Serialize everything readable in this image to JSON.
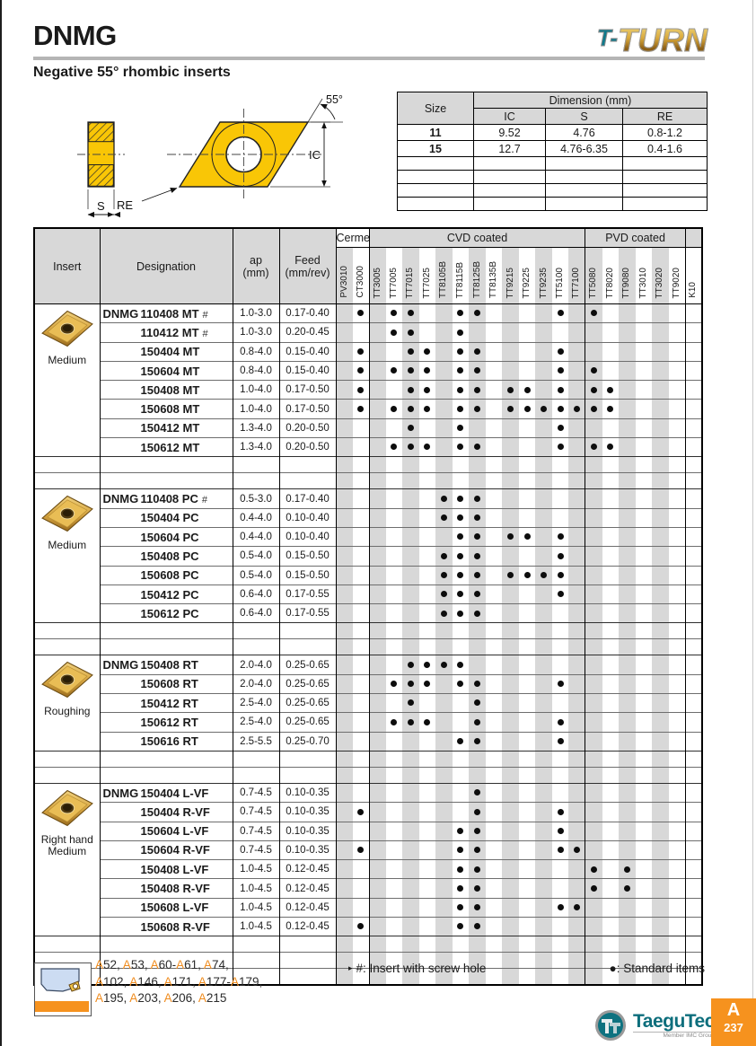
{
  "page": {
    "title": "DNMG",
    "subtitle": "Negative 55° rhombic inserts",
    "brand": {
      "part1": "T-",
      "part2": "TURN"
    },
    "tab": {
      "letter": "A",
      "page_number": "237"
    },
    "footer_brand": {
      "name": "TaeguTec",
      "sub": "Member IMC Group"
    }
  },
  "diagram": {
    "angle": "55°",
    "ic": "IC",
    "s": "S",
    "re": "RE"
  },
  "dimension_table": {
    "size_label": "Size",
    "dim_label": "Dimension (mm)",
    "cols": [
      "IC",
      "S",
      "RE"
    ],
    "rows": [
      {
        "size": "11",
        "ic": "9.52",
        "s": "4.76",
        "re": "0.8-1.2"
      },
      {
        "size": "15",
        "ic": "12.7",
        "s": "4.76-6.35",
        "re": "0.4-1.6"
      }
    ],
    "empty_row_count": 4
  },
  "main_table": {
    "left_headers": {
      "insert": "Insert",
      "designation": "Designation",
      "ap": [
        "ap",
        "(mm)"
      ],
      "feed": [
        "Feed",
        "(mm/rev)"
      ]
    },
    "groups": [
      {
        "label": "Cermet",
        "span": 2,
        "shaded": false
      },
      {
        "label": "CVD coated",
        "span": 13,
        "shaded": true
      },
      {
        "label": "PVD coated",
        "span": 6,
        "shaded": true
      },
      {
        "label": "",
        "span": 1,
        "shaded": true
      }
    ],
    "grades": [
      "PV3010",
      "CT3000",
      "TT3005",
      "TT7005",
      "TT7015",
      "TT7025",
      "TT8105B",
      "TT8115B",
      "TT8125B",
      "TT8135B",
      "TT9215",
      "TT9225",
      "TT9235",
      "TT5100",
      "TT7100",
      "TT5080",
      "TT8020",
      "TT9080",
      "TT3010",
      "TT3020",
      "TT9020",
      "K10"
    ],
    "blocks": [
      {
        "insert_label": [
          "Medium"
        ],
        "rows": [
          {
            "prefix": "DNMG",
            "name": "110408 MT",
            "suffix": "#",
            "ap": "1.0-3.0",
            "feed": "0.17-0.40",
            "dots": [
              "CT3000",
              "TT7005",
              "TT7015",
              "TT8115B",
              "TT8125B",
              "TT5100",
              "TT5080"
            ]
          },
          {
            "prefix": "",
            "name": "110412 MT",
            "suffix": "#",
            "ap": "1.0-3.0",
            "feed": "0.20-0.45",
            "dots": [
              "TT7005",
              "TT7015",
              "TT8115B"
            ]
          },
          {
            "prefix": "",
            "name": "150404 MT",
            "suffix": "",
            "ap": "0.8-4.0",
            "feed": "0.15-0.40",
            "dots": [
              "CT3000",
              "TT7015",
              "TT7025",
              "TT8115B",
              "TT8125B",
              "TT5100"
            ]
          },
          {
            "prefix": "",
            "name": "150604 MT",
            "suffix": "",
            "ap": "0.8-4.0",
            "feed": "0.15-0.40",
            "dots": [
              "CT3000",
              "TT7005",
              "TT7015",
              "TT7025",
              "TT8115B",
              "TT8125B",
              "TT5100",
              "TT5080"
            ]
          },
          {
            "prefix": "",
            "name": "150408 MT",
            "suffix": "",
            "ap": "1.0-4.0",
            "feed": "0.17-0.50",
            "dots": [
              "CT3000",
              "TT7015",
              "TT7025",
              "TT8115B",
              "TT8125B",
              "TT9215",
              "TT9225",
              "TT5100",
              "TT5080",
              "TT8020"
            ]
          },
          {
            "prefix": "",
            "name": "150608 MT",
            "suffix": "",
            "ap": "1.0-4.0",
            "feed": "0.17-0.50",
            "dots": [
              "CT3000",
              "TT7005",
              "TT7015",
              "TT7025",
              "TT8115B",
              "TT8125B",
              "TT9215",
              "TT9225",
              "TT9235",
              "TT5100",
              "TT7100",
              "TT5080",
              "TT8020"
            ]
          },
          {
            "prefix": "",
            "name": "150412 MT",
            "suffix": "",
            "ap": "1.3-4.0",
            "feed": "0.20-0.50",
            "dots": [
              "TT7015",
              "TT8115B",
              "TT5100"
            ]
          },
          {
            "prefix": "",
            "name": "150612 MT",
            "suffix": "",
            "ap": "1.3-4.0",
            "feed": "0.20-0.50",
            "dots": [
              "TT7005",
              "TT7015",
              "TT7025",
              "TT8115B",
              "TT8125B",
              "TT5100",
              "TT5080",
              "TT8020"
            ]
          }
        ]
      },
      {
        "insert_label": [
          "Medium"
        ],
        "rows": [
          {
            "prefix": "DNMG",
            "name": "110408 PC",
            "suffix": "#",
            "ap": "0.5-3.0",
            "feed": "0.17-0.40",
            "dots": [
              "TT8105B",
              "TT8115B",
              "TT8125B"
            ]
          },
          {
            "prefix": "",
            "name": "150404 PC",
            "suffix": "",
            "ap": "0.4-4.0",
            "feed": "0.10-0.40",
            "dots": [
              "TT8105B",
              "TT8115B",
              "TT8125B"
            ]
          },
          {
            "prefix": "",
            "name": "150604 PC",
            "suffix": "",
            "ap": "0.4-4.0",
            "feed": "0.10-0.40",
            "dots": [
              "TT8115B",
              "TT8125B",
              "TT9215",
              "TT9225",
              "TT5100"
            ]
          },
          {
            "prefix": "",
            "name": "150408 PC",
            "suffix": "",
            "ap": "0.5-4.0",
            "feed": "0.15-0.50",
            "dots": [
              "TT8105B",
              "TT8115B",
              "TT8125B",
              "TT5100"
            ]
          },
          {
            "prefix": "",
            "name": "150608 PC",
            "suffix": "",
            "ap": "0.5-4.0",
            "feed": "0.15-0.50",
            "dots": [
              "TT8105B",
              "TT8115B",
              "TT8125B",
              "TT9215",
              "TT9225",
              "TT9235",
              "TT5100"
            ]
          },
          {
            "prefix": "",
            "name": "150412 PC",
            "suffix": "",
            "ap": "0.6-4.0",
            "feed": "0.17-0.55",
            "dots": [
              "TT8105B",
              "TT8115B",
              "TT8125B",
              "TT5100"
            ]
          },
          {
            "prefix": "",
            "name": "150612 PC",
            "suffix": "",
            "ap": "0.6-4.0",
            "feed": "0.17-0.55",
            "dots": [
              "TT8105B",
              "TT8115B",
              "TT8125B"
            ]
          }
        ]
      },
      {
        "insert_label": [
          "Roughing"
        ],
        "rows": [
          {
            "prefix": "DNMG",
            "name": "150408 RT",
            "suffix": "",
            "ap": "2.0-4.0",
            "feed": "0.25-0.65",
            "dots": [
              "TT7015",
              "TT7025",
              "TT8105B",
              "TT8115B"
            ]
          },
          {
            "prefix": "",
            "name": "150608 RT",
            "suffix": "",
            "ap": "2.0-4.0",
            "feed": "0.25-0.65",
            "dots": [
              "TT7005",
              "TT7015",
              "TT7025",
              "TT8115B",
              "TT8125B",
              "TT5100"
            ]
          },
          {
            "prefix": "",
            "name": "150412 RT",
            "suffix": "",
            "ap": "2.5-4.0",
            "feed": "0.25-0.65",
            "dots": [
              "TT7015",
              "TT8125B"
            ]
          },
          {
            "prefix": "",
            "name": "150612 RT",
            "suffix": "",
            "ap": "2.5-4.0",
            "feed": "0.25-0.65",
            "dots": [
              "TT7005",
              "TT7015",
              "TT7025",
              "TT8125B",
              "TT5100"
            ]
          },
          {
            "prefix": "",
            "name": "150616 RT",
            "suffix": "",
            "ap": "2.5-5.5",
            "feed": "0.25-0.70",
            "dots": [
              "TT8115B",
              "TT8125B",
              "TT5100"
            ]
          }
        ]
      },
      {
        "insert_label": [
          "Right hand",
          "Medium"
        ],
        "rows": [
          {
            "prefix": "DNMG",
            "name": "150404 L-VF",
            "suffix": "",
            "ap": "0.7-4.5",
            "feed": "0.10-0.35",
            "dots": [
              "TT8125B"
            ]
          },
          {
            "prefix": "",
            "name": "150404 R-VF",
            "suffix": "",
            "ap": "0.7-4.5",
            "feed": "0.10-0.35",
            "dots": [
              "CT3000",
              "TT8125B",
              "TT5100"
            ]
          },
          {
            "prefix": "",
            "name": "150604 L-VF",
            "suffix": "",
            "ap": "0.7-4.5",
            "feed": "0.10-0.35",
            "dots": [
              "TT8115B",
              "TT8125B",
              "TT5100"
            ]
          },
          {
            "prefix": "",
            "name": "150604 R-VF",
            "suffix": "",
            "ap": "0.7-4.5",
            "feed": "0.10-0.35",
            "dots": [
              "CT3000",
              "TT8115B",
              "TT8125B",
              "TT5100",
              "TT7100"
            ]
          },
          {
            "prefix": "",
            "name": "150408 L-VF",
            "suffix": "",
            "ap": "1.0-4.5",
            "feed": "0.12-0.45",
            "dots": [
              "TT8115B",
              "TT8125B",
              "TT5080",
              "TT9080"
            ]
          },
          {
            "prefix": "",
            "name": "150408 R-VF",
            "suffix": "",
            "ap": "1.0-4.5",
            "feed": "0.12-0.45",
            "dots": [
              "TT8115B",
              "TT8125B",
              "TT5080",
              "TT9080"
            ]
          },
          {
            "prefix": "",
            "name": "150608 L-VF",
            "suffix": "",
            "ap": "1.0-4.5",
            "feed": "0.12-0.45",
            "dots": [
              "TT8115B",
              "TT8125B",
              "TT5100",
              "TT7100"
            ]
          },
          {
            "prefix": "",
            "name": "150608 R-VF",
            "suffix": "",
            "ap": "1.0-4.5",
            "feed": "0.12-0.45",
            "dots": [
              "CT3000",
              "TT8115B",
              "TT8125B"
            ]
          }
        ]
      }
    ]
  },
  "footer": {
    "refs_lines": [
      "A52, A53, A60-A61, A74,",
      "A102, A146, A171, A177-A179,",
      "A195, A203, A206, A215"
    ],
    "note_screw_marker": "▸",
    "note_screw": "#: Insert with screw hole",
    "note_standard": "●: Standard items"
  },
  "colors": {
    "accent_orange": "#f6921e",
    "brand_teal": "#0d6e7c",
    "header_gray": "#d8d8d8"
  }
}
